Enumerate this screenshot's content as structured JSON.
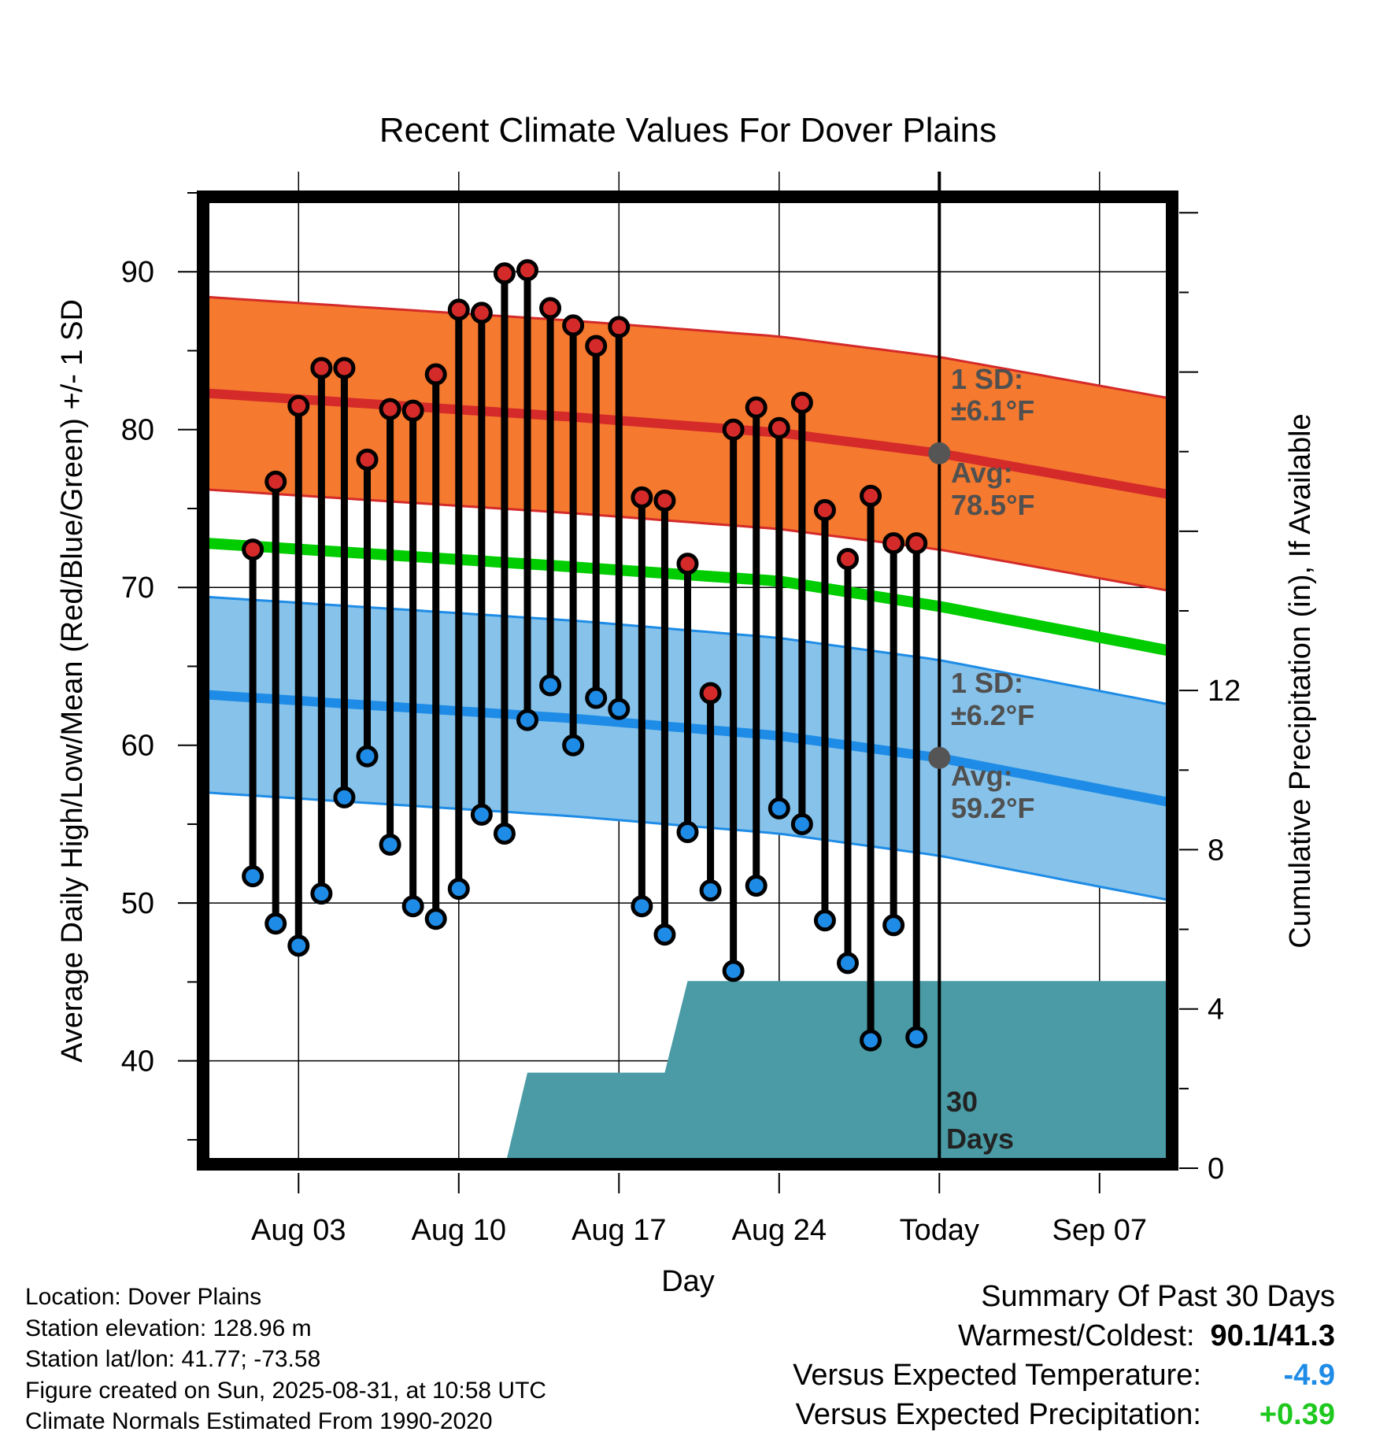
{
  "chart_data": {
    "type": "line",
    "title": "Recent Climate Values For Dover Plains",
    "xlabel": "Day",
    "ylabel_left": "Average Daily High/Low/Mean (Red/Blue/Green) +/- 1 SD",
    "ylabel_right": "Cumulative Precipitation (in), If Available",
    "x_tick_labels": [
      "Aug 03",
      "Aug 10",
      "Aug 17",
      "Aug 24",
      "Today",
      "Sep 07"
    ],
    "y_ticks_left": [
      "40",
      "50",
      "60",
      "70",
      "80",
      "90"
    ],
    "y_ticks_right": [
      "0",
      "4",
      "8",
      "12"
    ],
    "ylim_left": [
      33.2,
      95
    ],
    "ylim_right": [
      0,
      24.5
    ],
    "xlim": [
      "Jul 30",
      "Sep 10"
    ],
    "grid": true,
    "days": [
      "Aug 01",
      "Aug 02",
      "Aug 03",
      "Aug 04",
      "Aug 05",
      "Aug 06",
      "Aug 07",
      "Aug 08",
      "Aug 09",
      "Aug 10",
      "Aug 11",
      "Aug 12",
      "Aug 13",
      "Aug 14",
      "Aug 15",
      "Aug 16",
      "Aug 17",
      "Aug 18",
      "Aug 19",
      "Aug 20",
      "Aug 21",
      "Aug 22",
      "Aug 23",
      "Aug 24",
      "Aug 25",
      "Aug 26",
      "Aug 27",
      "Aug 28",
      "Aug 29",
      "Aug 30"
    ],
    "daily_high": [
      72.4,
      76.7,
      81.5,
      83.9,
      83.9,
      78.1,
      81.3,
      81.2,
      83.5,
      87.6,
      87.4,
      89.9,
      90.1,
      87.7,
      86.6,
      85.3,
      86.5,
      75.7,
      75.5,
      71.5,
      63.3,
      80.0,
      81.4,
      80.1,
      81.7,
      74.9,
      71.8,
      75.8,
      72.8,
      72.8
    ],
    "daily_low": [
      51.7,
      48.7,
      47.3,
      50.6,
      56.7,
      59.3,
      53.7,
      49.8,
      49.0,
      50.9,
      55.6,
      54.4,
      61.6,
      63.8,
      60.0,
      63.0,
      62.3,
      49.8,
      48.0,
      54.5,
      50.8,
      45.7,
      51.1,
      56.0,
      55.0,
      48.9,
      46.2,
      41.3,
      48.6,
      41.5
    ],
    "normal_high": {
      "x": [
        "Jul 30",
        "Aug 15",
        "Aug 24",
        "Aug 31",
        "Sep 10"
      ],
      "avg": [
        82.3,
        80.8,
        79.8,
        78.5,
        75.9
      ],
      "sd": 6.1
    },
    "normal_low": {
      "x": [
        "Jul 30",
        "Aug 15",
        "Aug 24",
        "Aug 31",
        "Sep 10"
      ],
      "avg": [
        63.2,
        61.7,
        60.6,
        59.2,
        56.4
      ],
      "sd": 6.2
    },
    "normal_mean": {
      "x": [
        "Jul 30",
        "Aug 15",
        "Aug 24",
        "Aug 31",
        "Sep 10"
      ],
      "values": [
        72.8,
        71.3,
        70.4,
        68.8,
        66.0
      ]
    },
    "precip_cumulative": {
      "x": [
        "Aug 12",
        "Aug 13",
        "Aug 19",
        "Aug 20",
        "Sep 10"
      ],
      "values": [
        0,
        2.4,
        2.4,
        4.7,
        4.7
      ]
    },
    "colors": {
      "high": "#d42a2a",
      "low": "#1e8ce6",
      "mean": "#00cc00",
      "high_band": "#f5792e",
      "low_band": "#86c2ea",
      "precip": "#4a9ba5",
      "avg_marker": "#555555"
    }
  },
  "annotations": {
    "high_sd_label": "1 SD:",
    "high_sd_value": "±6.1°F",
    "high_avg_label": "Avg:",
    "high_avg_value": "78.5°F",
    "low_sd_label": "1 SD:",
    "low_sd_value": "±6.2°F",
    "low_avg_label": "Avg:",
    "low_avg_value": "59.2°F",
    "days_count": "30",
    "days_word": "Days"
  },
  "station_info": [
    "Location: Dover Plains",
    "Station elevation: 128.96 m",
    "Station lat/lon: 41.77; -73.58",
    "Figure created on Sun, 2025-08-31, at 10:58 UTC",
    "Climate Normals Estimated From 1990-2020"
  ],
  "summary": {
    "heading": "Summary Of Past 30 Days",
    "warmest_coldest_label": "Warmest/Coldest:",
    "warmest_coldest_value": "90.1/41.3",
    "temp_label": "Versus Expected Temperature:",
    "temp_value": "-4.9",
    "precip_label": "Versus Expected Precipitation:",
    "precip_value": "+0.39"
  }
}
